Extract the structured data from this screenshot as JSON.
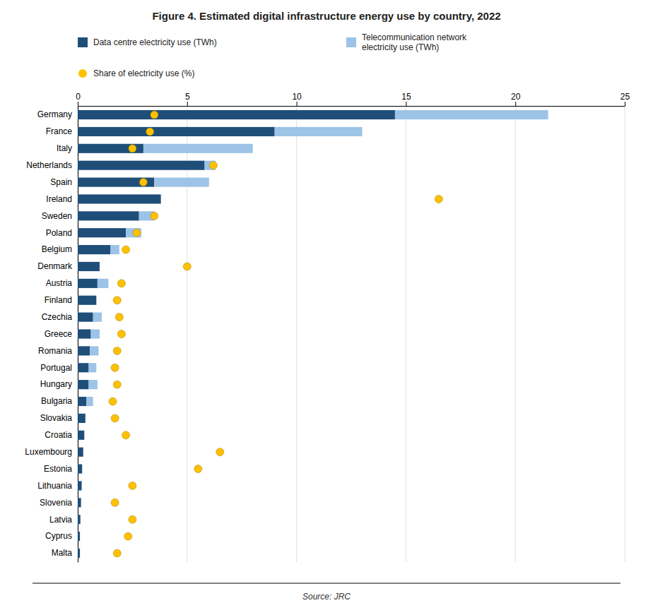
{
  "chart_data": {
    "type": "bar",
    "orientation": "horizontal",
    "stacked": true,
    "title": "Figure 4. Estimated digital infrastructure energy use by country, 2022",
    "annotations": [
      "Source: JRC"
    ],
    "categories": [
      "Germany",
      "France",
      "Italy",
      "Netherlands",
      "Spain",
      "Ireland",
      "Sweden",
      "Poland",
      "Belgium",
      "Denmark",
      "Austria",
      "Finland",
      "Czechia",
      "Greece",
      "Romania",
      "Portugal",
      "Hungary",
      "Bulgaria",
      "Slovakia",
      "Croatia",
      "Luxembourg",
      "Estonia",
      "Lithuania",
      "Slovenia",
      "Latvia",
      "Cyprus",
      "Malta"
    ],
    "series": [
      {
        "name": "Data centre electricity use (TWh)",
        "color": "#1f4e79",
        "values": [
          14.5,
          9.0,
          3.0,
          5.8,
          3.5,
          3.8,
          2.8,
          2.2,
          1.5,
          1.0,
          0.9,
          0.85,
          0.7,
          0.6,
          0.55,
          0.5,
          0.5,
          0.4,
          0.35,
          0.3,
          0.25,
          0.2,
          0.18,
          0.15,
          0.12,
          0.1,
          0.1
        ]
      },
      {
        "name": "Telecommunication network\nelectricity use (TWh)",
        "color": "#9dc3e6",
        "values": [
          7.0,
          4.0,
          5.0,
          0.5,
          2.5,
          0.0,
          0.7,
          0.7,
          0.4,
          0.0,
          0.5,
          0.0,
          0.4,
          0.4,
          0.4,
          0.35,
          0.4,
          0.3,
          0.0,
          0.0,
          0.0,
          0.0,
          0.0,
          0.0,
          0.0,
          0.0,
          0.0
        ]
      },
      {
        "name": "Share of electricity use (%)",
        "type": "scatter",
        "marker": "circle",
        "color": "#ffc000",
        "values": [
          3.5,
          3.3,
          2.5,
          6.2,
          3.0,
          16.5,
          3.5,
          2.7,
          2.2,
          5.0,
          2.0,
          1.8,
          1.9,
          2.0,
          1.8,
          1.7,
          1.8,
          1.6,
          1.7,
          2.2,
          6.5,
          5.5,
          2.5,
          1.7,
          2.5,
          2.3,
          1.8
        ]
      }
    ],
    "xlim": [
      0,
      25
    ],
    "xticks": [
      0,
      5,
      10,
      15,
      20,
      25
    ],
    "grid": true
  }
}
